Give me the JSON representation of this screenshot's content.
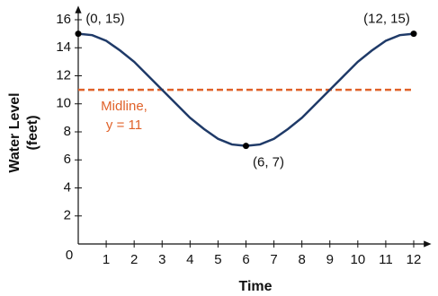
{
  "chart_data": {
    "type": "line",
    "xlabel": "Time",
    "ylabel": [
      "Water Level",
      "(feet)"
    ],
    "xlim": [
      0,
      12
    ],
    "ylim": [
      0,
      16
    ],
    "xticks": [
      0,
      1,
      2,
      3,
      4,
      5,
      6,
      7,
      8,
      9,
      10,
      11,
      12
    ],
    "yticks": [
      2,
      4,
      6,
      8,
      10,
      12,
      14,
      16
    ],
    "grid": false,
    "x": [
      0,
      0.5,
      1,
      1.5,
      2,
      2.5,
      3,
      3.5,
      4,
      4.5,
      5,
      5.5,
      6,
      6.5,
      7,
      7.5,
      8,
      8.5,
      9,
      9.5,
      10,
      10.5,
      11,
      11.5,
      12
    ],
    "series": [
      {
        "color": "#1f3a68",
        "values": [
          15,
          14.9,
          14.5,
          13.8,
          13,
          12,
          11,
          10,
          9,
          8.2,
          7.5,
          7.1,
          7,
          7.1,
          7.5,
          8.2,
          9,
          10,
          11,
          12,
          13,
          13.8,
          14.5,
          14.9,
          15
        ]
      }
    ],
    "points": {
      "color": "#000000",
      "x": [
        0,
        6,
        12
      ],
      "values": [
        15,
        7,
        15
      ],
      "value_labels": [
        "(0, 15)",
        "(6, 7)",
        "(12, 15)"
      ]
    },
    "midline": {
      "color": "#e0622a",
      "value": 11,
      "label": [
        "Midline,",
        "y = 11"
      ]
    }
  }
}
